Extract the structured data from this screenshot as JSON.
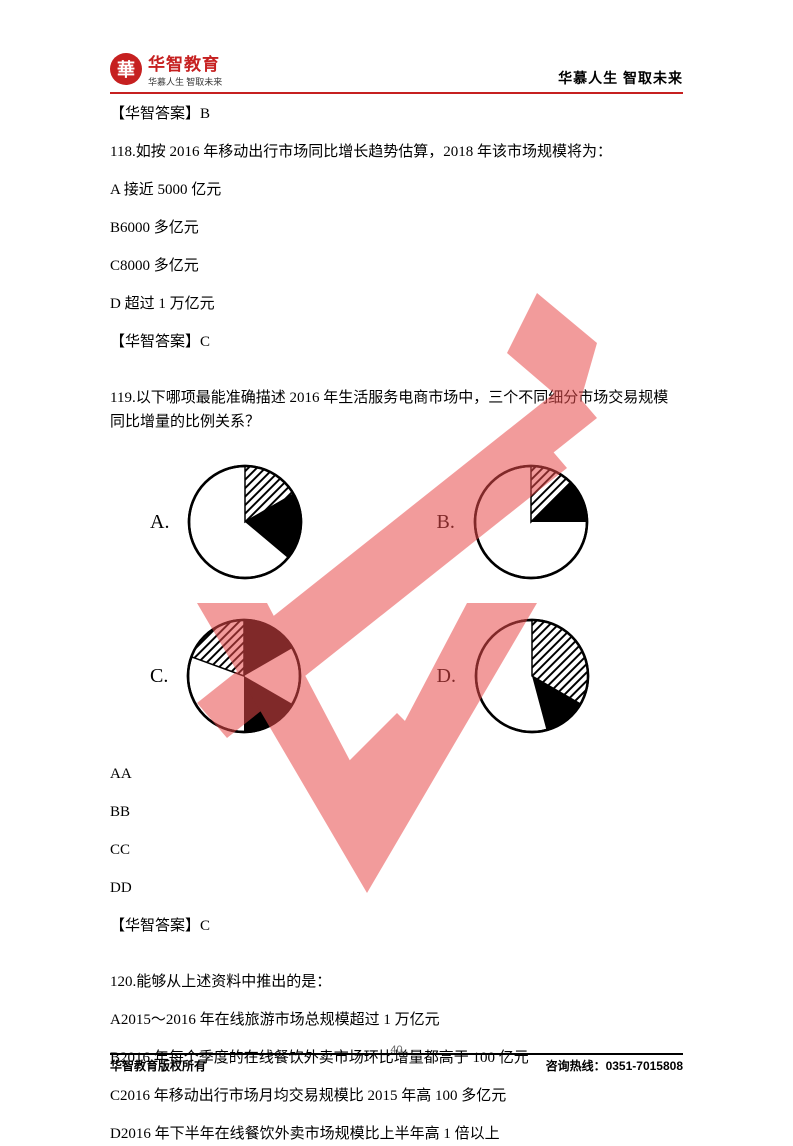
{
  "header": {
    "logo_char": "華",
    "logo_main": "华智教育",
    "logo_sub": "华慕人生 智取未来",
    "slogan": "华慕人生 智取未来"
  },
  "ans_117": "【华智答案】B",
  "q118": {
    "text": "118.如按 2016 年移动出行市场同比增长趋势估算，2018 年该市场规模将为：",
    "optA": "A 接近 5000 亿元",
    "optB": "B6000 多亿元",
    "optC": "C8000 多亿元",
    "optD": "D 超过 1 万亿元",
    "answer": "【华智答案】C"
  },
  "q119": {
    "text": "119.以下哪项最能准确描述 2016 年生活服务电商市场中，三个不同细分市场交易规模同比增量的比例关系？",
    "chart_labels": {
      "A": "A.",
      "B": "B.",
      "C": "C.",
      "D": "D."
    },
    "list": {
      "AA": "AA",
      "BB": "BB",
      "CC": "CC",
      "DD": "DD"
    },
    "answer": "【华智答案】C",
    "pies": {
      "A": {
        "hatch_start": 0,
        "hatch_extent": 60,
        "black_start": 60,
        "black_extent": 70,
        "stroke": "#000000",
        "radius": 56
      },
      "B": {
        "hatch_start": 0,
        "hatch_extent": 45,
        "black_start": 45,
        "black_extent": 45,
        "stroke": "#000000",
        "radius": 56
      },
      "C": {
        "hatch_start": 290,
        "hatch_extent": 70,
        "black_start": 120,
        "black_extent": 60,
        "extra_black_start": 0,
        "extra_black_extent": 60,
        "stroke": "#000000",
        "radius": 56
      },
      "D": {
        "hatch_start": 0,
        "hatch_extent": 120,
        "black_start": 120,
        "black_extent": 45,
        "stroke": "#000000",
        "radius": 56
      }
    }
  },
  "q120": {
    "text": "120.能够从上述资料中推出的是：",
    "optA": "A2015～2016 年在线旅游市场总规模超过 1 万亿元",
    "optB": "B2016 年每个季度的在线餐饮外卖市场环比增量都高于 100 亿元",
    "optC": "C2016 年移动出行市场月均交易规模比 2015 年高 100 多亿元",
    "optD": "D2016 年下半年在线餐饮外卖市场规模比上半年高 1 倍以上"
  },
  "footer": {
    "left": "华智教育版权所有",
    "page": "40",
    "right_label": "咨询热线：",
    "right_phone": "0351-7015808"
  },
  "colors": {
    "brand_red": "#c62020",
    "text": "#000000",
    "watermark": "#e94b4b"
  }
}
